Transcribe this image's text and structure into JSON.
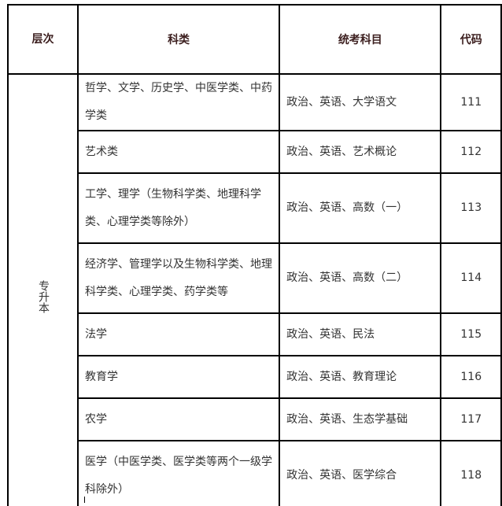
{
  "headers": {
    "level": "层次",
    "category": "科类",
    "subjects": "统考科目",
    "code": "代码"
  },
  "level": "专升本",
  "rows": [
    {
      "category": "哲学、文学、历史学、中医学类、中药学类",
      "subjects": "政治、英语、大学语文",
      "code": "111"
    },
    {
      "category": "艺术类",
      "subjects": "政治、英语、艺术概论",
      "code": "112"
    },
    {
      "category": "工学、理学（生物科学类、地理科学类、心理学类等除外）",
      "subjects": "政治、英语、高数（一）",
      "code": "113"
    },
    {
      "category": "经济学、管理学以及生物科学类、地理科学类、心理学类、药学类等",
      "subjects": "政治、英语、高数（二）",
      "code": "114"
    },
    {
      "category": "法学",
      "subjects": "政治、英语、民法",
      "code": "115"
    },
    {
      "category": "教育学",
      "subjects": "政治、英语、教育理论",
      "code": "116"
    },
    {
      "category": "农学",
      "subjects": "政治、英语、生态学基础",
      "code": "117"
    },
    {
      "category": "医学（中医学类、医学类等两个一级学科除外）",
      "subjects": "政治、英语、医学综合",
      "code": "118"
    }
  ]
}
